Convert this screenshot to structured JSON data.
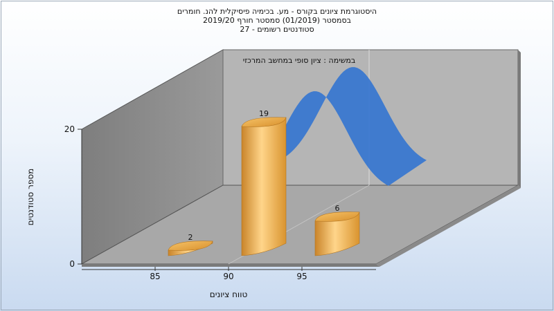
{
  "title_lines": [
    "היסטוגרמת ציונים בקורס - מע. בכימיה פיסיקלית להנ. חומרים",
    "בסמסטר (01/2019) סמסטר חורף 2019/20",
    "סטודנטים רשומים - 27"
  ],
  "colors": {
    "bar": "#e8a640",
    "curve": "#3a78d0",
    "back_wall": "#b5b5b5",
    "side_wall": "#8c8c8c",
    "floor": "#a9a9a9"
  },
  "chart_data": {
    "type": "bar",
    "title": "היסטוגרמת ציונים בקורס - מע. בכימיה פיסיקלית להנ. חומרים",
    "annotation": "במשימה : ציון סופי במחשב המרכזי",
    "xlabel": "טווח ציונים",
    "ylabel": "מספר סטודנטים",
    "x_ticks": [
      85,
      90,
      95
    ],
    "y_ticks": [
      0,
      20
    ],
    "ylim": [
      0,
      20
    ],
    "categories": [
      "85-90",
      "90-95",
      "95-100"
    ],
    "values": [
      2,
      19,
      6
    ],
    "curve": {
      "type": "normal",
      "label": ""
    },
    "grid": true,
    "legend": "none"
  }
}
